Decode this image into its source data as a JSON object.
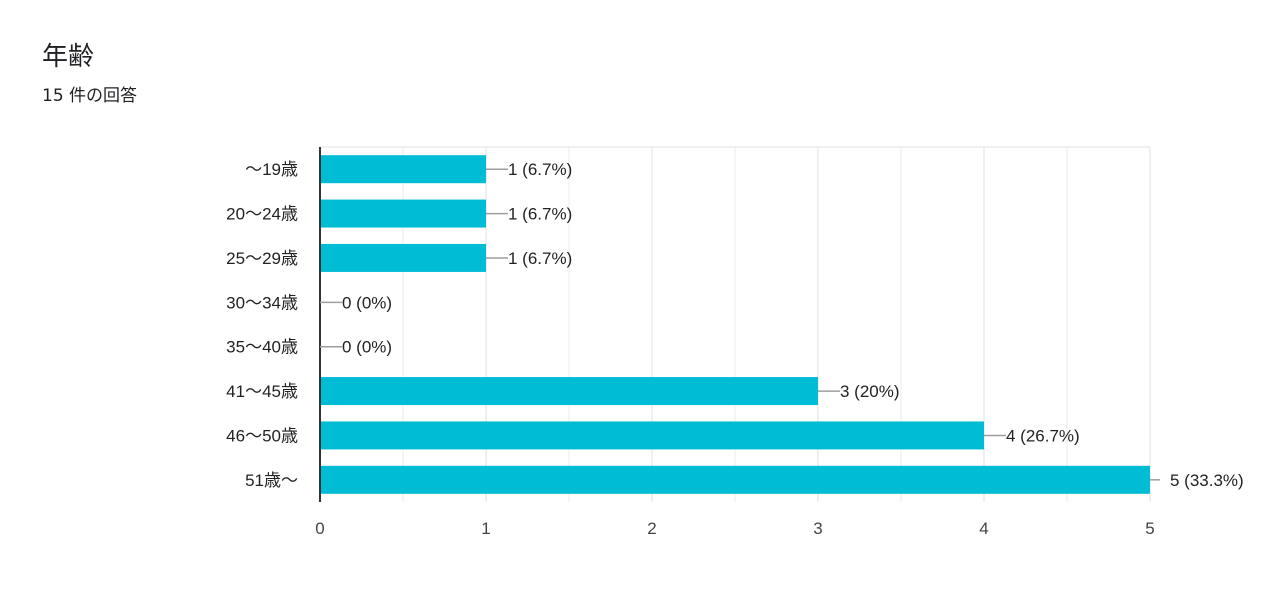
{
  "header": {
    "title": "年齢",
    "subtitle": "15 件の回答"
  },
  "chart_data": {
    "type": "bar",
    "orientation": "horizontal",
    "title": "年齢",
    "subtitle": "15 件の回答",
    "categories": [
      "〜19歳",
      "20〜24歳",
      "25〜29歳",
      "30〜34歳",
      "35〜40歳",
      "41〜45歳",
      "46〜50歳",
      "51歳〜"
    ],
    "values": [
      1,
      1,
      1,
      0,
      0,
      3,
      4,
      5
    ],
    "data_labels": [
      "1 (6.7%)",
      "1 (6.7%)",
      "1 (6.7%)",
      "0 (0%)",
      "0 (0%)",
      "3 (20%)",
      "4 (26.7%)",
      "5 (33.3%)"
    ],
    "xlim": [
      0,
      5
    ],
    "xticks": [
      "0",
      "1",
      "2",
      "3",
      "4",
      "5"
    ],
    "xlabel": "",
    "ylabel": "",
    "grid": true,
    "legend": "none",
    "colors": {
      "bar": "#00bcd4",
      "grid": "#ebebeb",
      "axis": "#333333",
      "leader": "#9e9e9e",
      "text": "#222222"
    }
  }
}
